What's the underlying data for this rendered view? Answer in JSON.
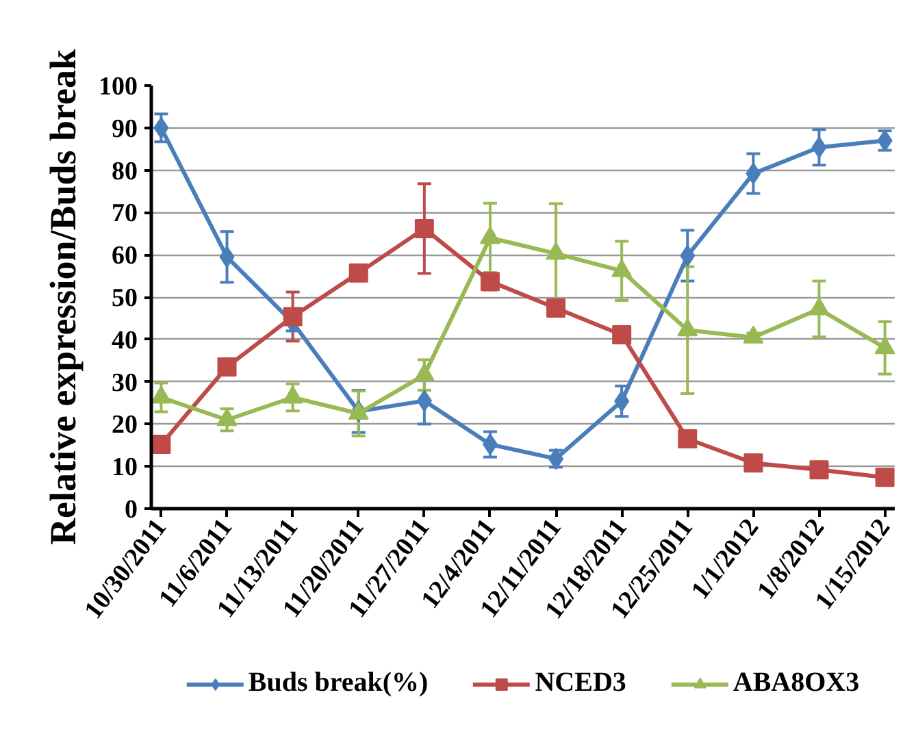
{
  "chart_data": {
    "type": "line",
    "ylabel": "Relative expression/Buds break",
    "categories": [
      "10/30/2011",
      "11/6/2011",
      "11/13/2011",
      "11/20/2011",
      "11/27/2011",
      "12/4/2011",
      "12/11/2011",
      "12/18/2011",
      "12/25/2011",
      "1/1/2012",
      "1/8/2012",
      "1/15/2012"
    ],
    "ylim": [
      0,
      100
    ],
    "yticks": [
      0,
      10,
      20,
      30,
      40,
      50,
      60,
      70,
      80,
      90,
      100
    ],
    "grid": "y",
    "legend": "bottom",
    "line_style": "solid",
    "series": [
      {
        "name": "Buds break(%)",
        "color": "#4a7ebb",
        "marker": "diamond",
        "values": [
          90,
          59.5,
          44,
          23,
          25.5,
          15.2,
          11.8,
          25.4,
          59.8,
          79.2,
          85.4,
          87
        ],
        "errors": [
          3.3,
          6,
          2,
          5,
          5.5,
          3,
          2,
          3.6,
          6,
          4.7,
          4.2,
          2.3
        ]
      },
      {
        "name": "NCED3",
        "color": "#be4b48",
        "marker": "square",
        "values": [
          15.2,
          33.5,
          45.4,
          55.7,
          66.2,
          53.7,
          47.4,
          41.1,
          16.5,
          10.8,
          9.2,
          7.4
        ],
        "errors": [
          1,
          1,
          5.8,
          1.5,
          10.6,
          2,
          1,
          1,
          1,
          1,
          1,
          1
        ]
      },
      {
        "name": "ABA8OX3",
        "color": "#98b954",
        "marker": "triangle",
        "values": [
          26.3,
          21,
          26.3,
          22.5,
          31.6,
          64,
          60.3,
          56.2,
          42.2,
          40.5,
          47.2,
          38
        ],
        "errors": [
          3.4,
          2.6,
          3.2,
          5.3,
          3.6,
          8.2,
          11.8,
          7,
          15,
          1,
          6.6,
          6.2
        ]
      }
    ]
  }
}
